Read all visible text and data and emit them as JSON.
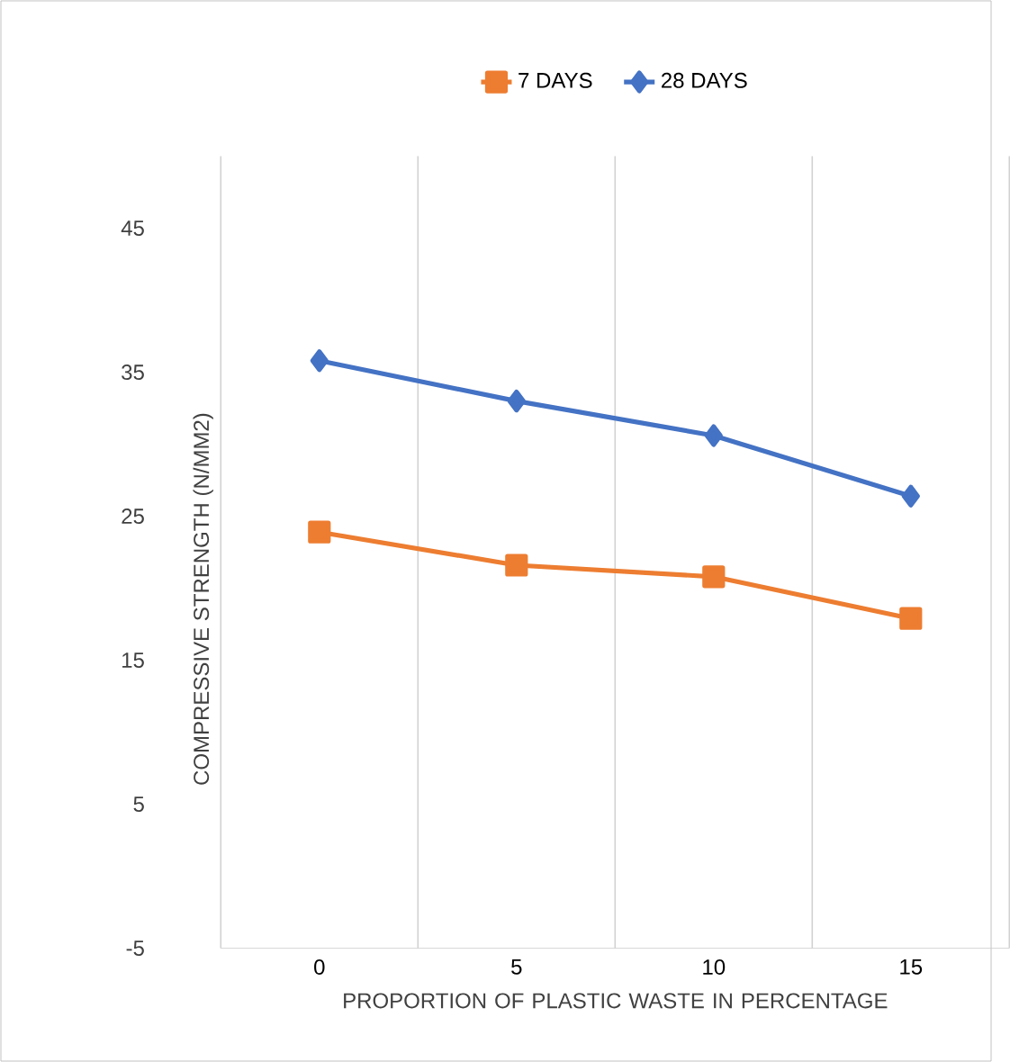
{
  "chart_data": {
    "type": "line",
    "xlabel": "PROPORTION OF PLASTIC WASTE IN PERCENTAGE",
    "ylabel": "COMPRESSIVE STRENGTH (N/MM2)",
    "categories": [
      "0",
      "5",
      "10",
      "15"
    ],
    "series": [
      {
        "name": "7 DAYS",
        "color": "#ed7d31",
        "marker": "square",
        "values": [
          23.9,
          21.6,
          20.8,
          17.9
        ]
      },
      {
        "name": "28 DAYS",
        "color": "#4472c4",
        "marker": "diamond",
        "values": [
          35.8,
          33.0,
          30.6,
          26.4
        ]
      }
    ],
    "ylim": [
      -5,
      50
    ],
    "yticks": [
      -5,
      5,
      15,
      25,
      35,
      45
    ],
    "grid": "x",
    "legend": "top",
    "line_style": "solid"
  }
}
